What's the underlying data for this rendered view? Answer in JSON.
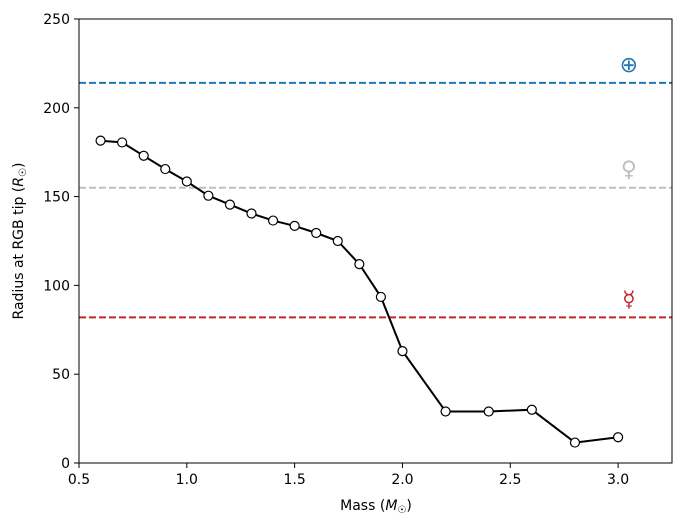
{
  "chart_data": {
    "type": "line",
    "xlabel": "Mass (M☉)",
    "ylabel": "Radius at RGB tip (R☉)",
    "xlim": [
      0.5,
      3.25
    ],
    "ylim": [
      0,
      250
    ],
    "xticks": [
      "0.5",
      "1.0",
      "1.5",
      "2.0",
      "2.5",
      "3.0"
    ],
    "yticks": [
      "0",
      "50",
      "100",
      "150",
      "200",
      "250"
    ],
    "grid": false,
    "series": [
      {
        "x": [
          0.6,
          0.7,
          0.8,
          0.9,
          1.0,
          1.1,
          1.2,
          1.3,
          1.4,
          1.5,
          1.6,
          1.7,
          1.8,
          1.9,
          2.0,
          2.2,
          2.4,
          2.6,
          2.8,
          3.0
        ],
        "y": [
          181.5,
          180.5,
          173,
          165.5,
          158.5,
          150.5,
          145.5,
          140.5,
          136.5,
          133.5,
          129.5,
          125,
          112,
          93.5,
          63,
          29,
          29,
          30,
          11.5,
          14.5
        ],
        "color": "#000000",
        "marker": "open-circle"
      }
    ],
    "reference_lines": [
      {
        "name": "Earth",
        "symbol": "⊕",
        "y": 214,
        "color": "#1f77b4"
      },
      {
        "name": "Venus",
        "symbol": "♀",
        "y": 155,
        "color": "#bfbfbf"
      },
      {
        "name": "Mercury",
        "symbol": "☿",
        "y": 82,
        "color": "#c0282a"
      }
    ]
  }
}
